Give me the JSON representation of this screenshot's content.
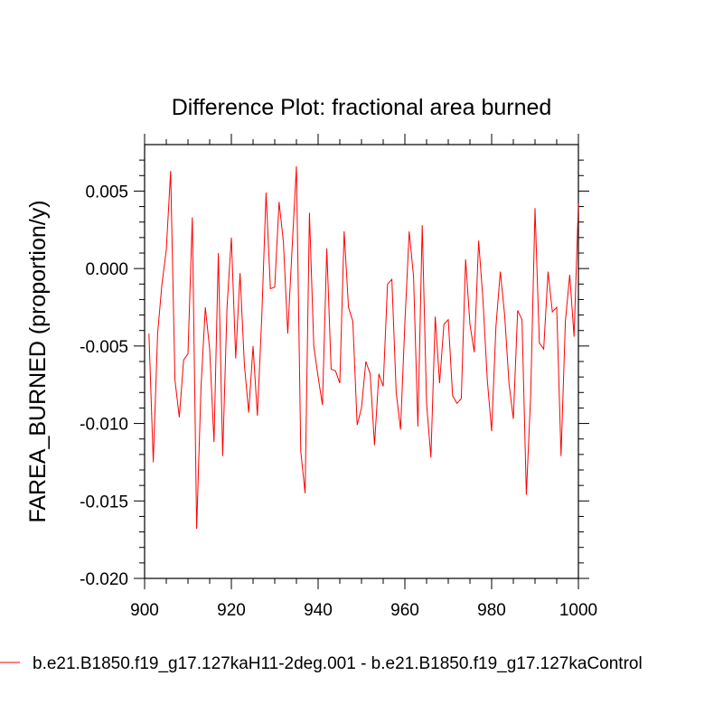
{
  "chart_data": {
    "type": "line",
    "title": "Difference Plot: fractional area burned",
    "xlabel": "",
    "ylabel": "FAREA_BURNED  (proportion/y)",
    "xlim": [
      900,
      1000
    ],
    "ylim": [
      -0.02,
      0.008
    ],
    "xticks": [
      900,
      920,
      940,
      960,
      980,
      1000
    ],
    "xtick_labels": [
      "900",
      "920",
      "940",
      "960",
      "980",
      "1000"
    ],
    "yticks": [
      -0.02,
      -0.015,
      -0.01,
      -0.005,
      0.0,
      0.005
    ],
    "ytick_labels": [
      "-0.020",
      "-0.015",
      "-0.010",
      "-0.005",
      "0.000",
      "0.005"
    ],
    "grid": false,
    "legend_position": "bottom",
    "series": [
      {
        "name": "b.e21.B1850.f19_g17.127kaH11-2deg.001 - b.e21.B1850.f19_g17.127kaControl",
        "color": "#ff0000",
        "x": [
          901,
          902,
          903,
          904,
          905,
          906,
          907,
          908,
          909,
          910,
          911,
          912,
          913,
          914,
          915,
          916,
          917,
          918,
          919,
          920,
          921,
          922,
          923,
          924,
          925,
          926,
          927,
          928,
          929,
          930,
          931,
          932,
          933,
          934,
          935,
          936,
          937,
          938,
          939,
          940,
          941,
          942,
          943,
          944,
          945,
          946,
          947,
          948,
          949,
          950,
          951,
          952,
          953,
          954,
          955,
          956,
          957,
          958,
          959,
          960,
          961,
          962,
          963,
          964,
          965,
          966,
          967,
          968,
          969,
          970,
          971,
          972,
          973,
          974,
          975,
          976,
          977,
          978,
          979,
          980,
          981,
          982,
          983,
          984,
          985,
          986,
          987,
          988,
          989,
          990,
          991,
          992,
          993,
          994,
          995,
          996,
          997,
          998,
          999,
          1000
        ],
        "values": [
          -0.0042,
          -0.0125,
          -0.0042,
          -0.001,
          0.0012,
          0.0063,
          -0.0072,
          -0.0096,
          -0.0059,
          -0.0055,
          0.0033,
          -0.0168,
          -0.0077,
          -0.0025,
          -0.0052,
          -0.0112,
          0.001,
          -0.0121,
          -0.0025,
          0.002,
          -0.0058,
          -0.0003,
          -0.0062,
          -0.0093,
          -0.005,
          -0.0095,
          -0.0032,
          0.0049,
          -0.0013,
          -0.0012,
          0.0043,
          0.0017,
          -0.0042,
          0.0013,
          0.0066,
          -0.0118,
          -0.0145,
          0.0036,
          -0.005,
          -0.007,
          -0.0088,
          0.0013,
          -0.0065,
          -0.0066,
          -0.0074,
          0.0024,
          -0.0025,
          -0.0034,
          -0.0101,
          -0.009,
          -0.006,
          -0.0068,
          -0.0114,
          -0.0068,
          -0.0076,
          -0.001,
          -0.0007,
          -0.008,
          -0.0104,
          -0.0035,
          0.0024,
          -0.0005,
          -0.0102,
          0.0028,
          -0.0087,
          -0.0122,
          -0.0031,
          -0.0074,
          -0.0036,
          -0.0033,
          -0.0082,
          -0.0087,
          -0.0084,
          0.0006,
          -0.0036,
          -0.0054,
          0.0018,
          -0.002,
          -0.0072,
          -0.0105,
          -0.0037,
          -0.0002,
          -0.003,
          -0.0074,
          -0.0097,
          -0.0027,
          -0.0033,
          -0.0146,
          -0.0082,
          0.0039,
          -0.0048,
          -0.0052,
          -0.0002,
          -0.0028,
          -0.0025,
          -0.0121,
          -0.0034,
          -0.0004,
          -0.0044,
          0.0042
        ]
      }
    ]
  }
}
